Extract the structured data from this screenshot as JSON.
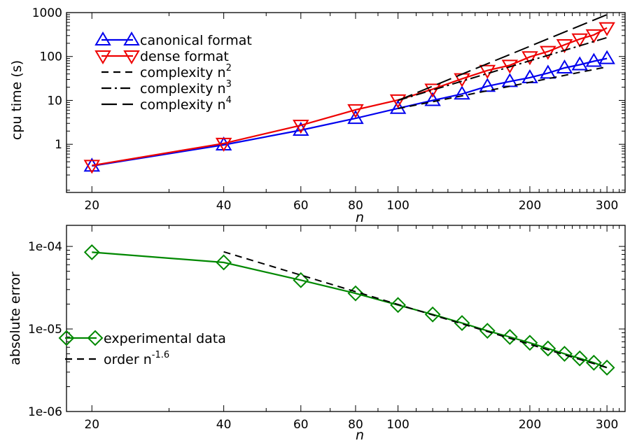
{
  "chart_data": [
    {
      "type": "line",
      "xlabel": "n",
      "ylabel": "cpu time (s)",
      "xscale": "log",
      "yscale": "log",
      "xlim": [
        17.5,
        330
      ],
      "ylim": [
        0.08,
        1000
      ],
      "xticks": [
        20,
        40,
        60,
        80,
        100,
        200,
        300
      ],
      "yticks": [
        1,
        10,
        100,
        1000
      ],
      "legend_position": "top-left",
      "series": [
        {
          "name": "canonical format",
          "color": "#0000ee",
          "marker": "triangle-up",
          "x": [
            20,
            40,
            60,
            80,
            100,
            120,
            140,
            160,
            180,
            200,
            220,
            240,
            260,
            280,
            300
          ],
          "y": [
            0.32,
            0.97,
            2.1,
            3.9,
            6.6,
            10,
            14,
            21,
            27,
            33,
            42,
            55,
            65,
            78,
            90
          ]
        },
        {
          "name": "dense format",
          "color": "#ee0000",
          "marker": "triangle-down",
          "x": [
            20,
            40,
            60,
            80,
            100,
            120,
            140,
            160,
            180,
            200,
            220,
            240,
            260,
            280,
            300
          ],
          "y": [
            0.33,
            1.05,
            2.7,
            6.1,
            10.2,
            18,
            31,
            48,
            63,
            98,
            130,
            185,
            250,
            310,
            450
          ]
        },
        {
          "name": "complexity n",
          "superscript": "2",
          "style": "dashed",
          "color": "#000000",
          "x": [
            100,
            300
          ],
          "y": [
            6.5,
            58
          ]
        },
        {
          "name": "complexity n",
          "superscript": "3",
          "style": "dashdot",
          "color": "#000000",
          "x": [
            100,
            300
          ],
          "y": [
            10,
            270
          ]
        },
        {
          "name": "complexity n",
          "superscript": "4",
          "style": "longdash",
          "color": "#000000",
          "x": [
            100,
            300
          ],
          "y": [
            10,
            900
          ]
        }
      ]
    },
    {
      "type": "line",
      "xlabel": "n",
      "ylabel": "absolute error",
      "xscale": "log",
      "yscale": "log",
      "xlim": [
        17.5,
        330
      ],
      "ylim": [
        1e-06,
        0.00018
      ],
      "xticks": [
        20,
        40,
        60,
        80,
        100,
        200,
        300
      ],
      "yticks": [
        1e-06,
        1e-05,
        0.0001
      ],
      "ytick_labels": [
        "1e-06",
        "1e-05",
        "1e-04"
      ],
      "legend_position": "bottom-left",
      "series": [
        {
          "name": "experimental data",
          "color": "#008800",
          "marker": "diamond",
          "x": [
            20,
            40,
            60,
            80,
            100,
            120,
            140,
            160,
            180,
            200,
            220,
            240,
            260,
            280,
            300
          ],
          "y": [
            8.5e-05,
            6.4e-05,
            3.9e-05,
            2.7e-05,
            1.95e-05,
            1.5e-05,
            1.18e-05,
            9.5e-06,
            8e-06,
            6.8e-06,
            5.8e-06,
            5e-06,
            4.4e-06,
            3.9e-06,
            3.4e-06
          ]
        },
        {
          "name": "order n",
          "superscript": "-1.6",
          "style": "dashed",
          "color": "#000000",
          "x": [
            40,
            300
          ],
          "y": [
            8.6e-05,
            3.4e-06
          ]
        }
      ]
    }
  ]
}
